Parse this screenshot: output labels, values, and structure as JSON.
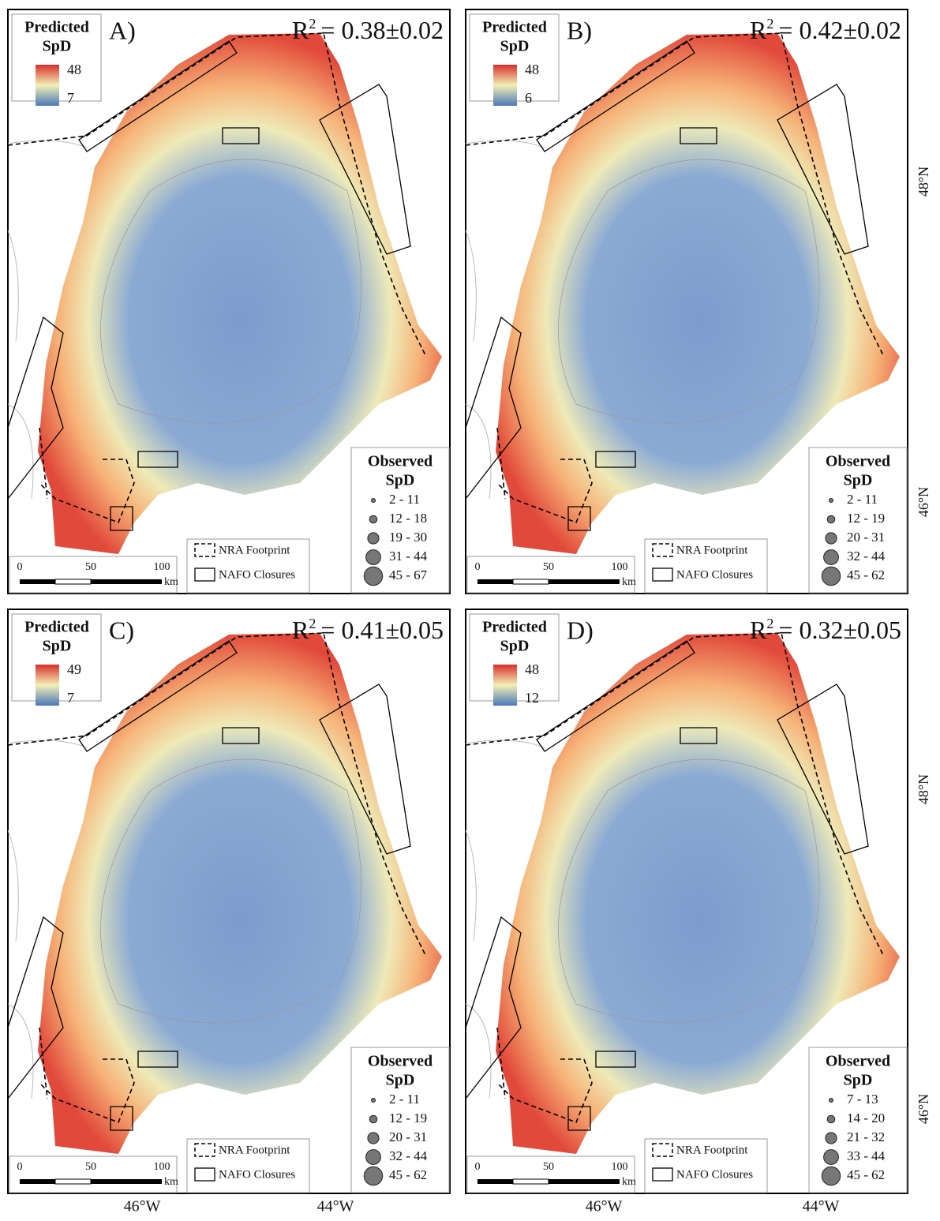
{
  "panels": [
    {
      "label": "A)",
      "r": "R",
      "r_sup": "2",
      "r2": "= 0.38±0.02",
      "pred_max": "48",
      "pred_min": "7",
      "obs_classes": [
        "2 - 11",
        "12 - 18",
        "19 - 30",
        "31 - 44",
        "45 - 67"
      ]
    },
    {
      "label": "B)",
      "r": "R",
      "r_sup": "2",
      "r2": "= 0.42±0.02",
      "pred_max": "48",
      "pred_min": "6",
      "obs_classes": [
        "2 - 11",
        "12 - 19",
        "20 - 31",
        "32 - 44",
        "45 - 62"
      ]
    },
    {
      "label": "C)",
      "r": "R",
      "r_sup": "2",
      "r2": "= 0.41±0.05",
      "pred_max": "49",
      "pred_min": "7",
      "obs_classes": [
        "2 - 11",
        "12 - 19",
        "20 - 31",
        "32 - 44",
        "45 - 62"
      ]
    },
    {
      "label": "D)",
      "r": "R",
      "r_sup": "2",
      "r2": "= 0.32±0.05",
      "pred_max": "48",
      "pred_min": "12",
      "obs_classes": [
        "7 - 13",
        "14 - 20",
        "21 - 32",
        "33 - 44",
        "45 - 62"
      ]
    }
  ],
  "legend": {
    "predicted": "Predicted",
    "observed": "Observed",
    "spd": "SpD",
    "nra": "NRA Footprint",
    "nafo": "NAFO Closures"
  },
  "scale_bar": {
    "ticks": [
      "0",
      "50",
      "100"
    ],
    "unit": "km"
  },
  "lat_labels": [
    "48°N",
    "46°N"
  ],
  "lon_labels": [
    "46°W",
    "44°W"
  ]
}
